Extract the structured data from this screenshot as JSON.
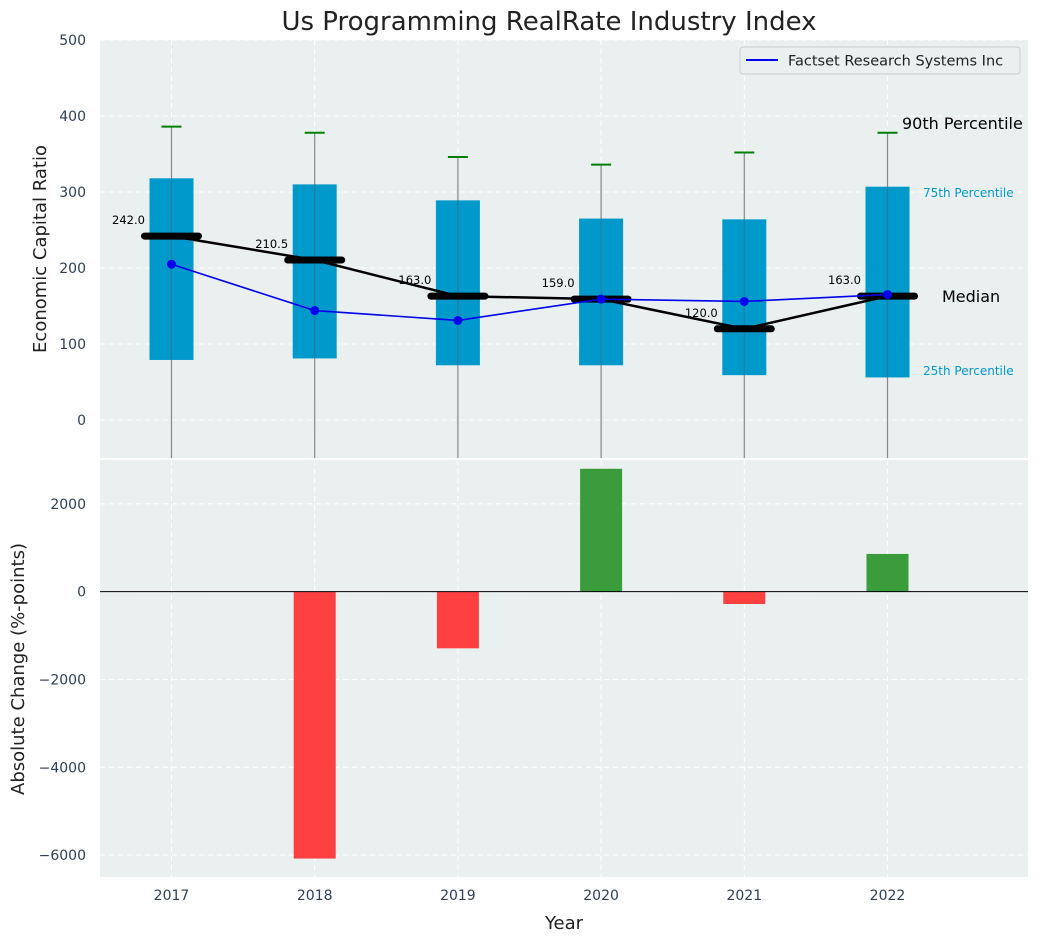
{
  "chart_data": [
    {
      "type": "box",
      "title": "Us Programming RealRate Industry Index",
      "ylabel": "Economic Capital Ratio",
      "xlabel": "",
      "ylim": [
        -50,
        500
      ],
      "yticks": [
        0,
        100,
        200,
        300,
        400,
        500
      ],
      "categories": [
        "2017",
        "2018",
        "2019",
        "2020",
        "2021",
        "2022"
      ],
      "boxes": [
        {
          "year": "2017",
          "p25": 79,
          "p75": 318,
          "median": 242.0,
          "whisker_top": 386
        },
        {
          "year": "2018",
          "p25": 81,
          "p75": 310,
          "median": 210.5,
          "whisker_top": 378
        },
        {
          "year": "2019",
          "p25": 72,
          "p75": 289,
          "median": 163.0,
          "whisker_top": 346
        },
        {
          "year": "2020",
          "p25": 72,
          "p75": 265,
          "median": 159.0,
          "whisker_top": 336
        },
        {
          "year": "2021",
          "p25": 59,
          "p75": 264,
          "median": 120.0,
          "whisker_top": 352
        },
        {
          "year": "2022",
          "p25": 56,
          "p75": 307,
          "median": 163.0,
          "whisker_top": 378
        }
      ],
      "median_labels": [
        "242.0",
        "210.5",
        "163.0",
        "159.0",
        "120.0",
        "163.0"
      ],
      "series": [
        {
          "name": "Factset Research Systems Inc",
          "color": "#0000ee",
          "values": [
            205,
            144,
            131,
            159,
            156,
            165
          ]
        }
      ],
      "legend": {
        "position": "top-right",
        "entries": [
          "Factset Research Systems Inc"
        ]
      },
      "annotations": {
        "p90": "90th Percentile",
        "p75": "75th Percentile",
        "median": "Median",
        "p25": "25th Percentile"
      },
      "colors": {
        "box": "#0099cc",
        "whisker_cap": "#008000",
        "median": "#000000",
        "background": "#eaeff0"
      }
    },
    {
      "type": "bar",
      "ylabel": "Absolute Change (%-points)",
      "xlabel": "Year",
      "ylim": [
        -6500,
        3000
      ],
      "yticks": [
        -6000,
        -4000,
        -2000,
        0,
        2000
      ],
      "ytick_labels": [
        "−6000",
        "−4000",
        "−2000",
        "0",
        "2000"
      ],
      "categories": [
        "2017",
        "2018",
        "2019",
        "2020",
        "2021",
        "2022"
      ],
      "values": [
        0,
        -6080,
        -1290,
        2800,
        -280,
        860
      ],
      "colors": {
        "positive": "#3a9c3a",
        "negative": "#ff4040"
      }
    }
  ]
}
